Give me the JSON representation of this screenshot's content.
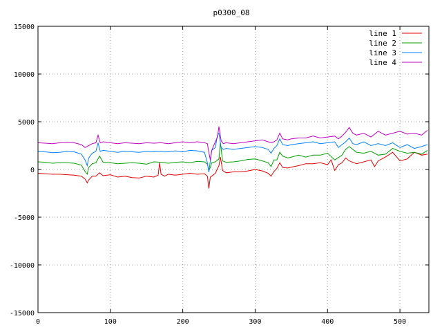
{
  "chart_data": {
    "type": "line",
    "title": "p0300_08",
    "xlabel": "",
    "ylabel": "",
    "xlim": [
      0,
      540
    ],
    "ylim": [
      -15000,
      15000
    ],
    "xticks": [
      0,
      100,
      200,
      300,
      400,
      500
    ],
    "yticks": [
      -15000,
      -10000,
      -5000,
      0,
      5000,
      10000,
      15000
    ],
    "grid": true,
    "legend_position": "top-right",
    "series": [
      {
        "name": "line 1",
        "color": "#e00000",
        "x": [
          0,
          10,
          20,
          30,
          40,
          50,
          60,
          65,
          68,
          70,
          75,
          80,
          85,
          90,
          100,
          110,
          120,
          130,
          140,
          150,
          160,
          166,
          168,
          170,
          175,
          180,
          190,
          200,
          210,
          220,
          230,
          234,
          236,
          238,
          240,
          245,
          250,
          252,
          255,
          260,
          270,
          280,
          290,
          300,
          310,
          318,
          322,
          326,
          330,
          334,
          338,
          345,
          350,
          360,
          370,
          380,
          390,
          400,
          405,
          410,
          415,
          420,
          425,
          430,
          440,
          450,
          460,
          465,
          470,
          480,
          490,
          500,
          510,
          520,
          530,
          538
        ],
        "y": [
          -400,
          -450,
          -500,
          -500,
          -550,
          -600,
          -700,
          -1000,
          -1400,
          -1100,
          -700,
          -700,
          -350,
          -650,
          -550,
          -800,
          -700,
          -850,
          -900,
          -700,
          -800,
          -600,
          700,
          -500,
          -700,
          -500,
          -600,
          -500,
          -400,
          -500,
          -450,
          -700,
          -2000,
          -800,
          -700,
          -400,
          400,
          1300,
          -100,
          -350,
          -250,
          -250,
          -150,
          0,
          -150,
          -400,
          -700,
          -200,
          100,
          700,
          200,
          150,
          250,
          400,
          600,
          600,
          700,
          500,
          1000,
          -100,
          500,
          700,
          1200,
          900,
          600,
          800,
          1000,
          300,
          900,
          1300,
          1800,
          900,
          1100,
          1800,
          1500,
          1600
        ]
      },
      {
        "name": "line 2",
        "color": "#00a000",
        "x": [
          0,
          10,
          20,
          30,
          40,
          50,
          60,
          65,
          68,
          70,
          75,
          80,
          85,
          90,
          100,
          110,
          120,
          130,
          140,
          150,
          160,
          170,
          180,
          190,
          200,
          210,
          220,
          230,
          234,
          236,
          238,
          240,
          245,
          250,
          252,
          255,
          260,
          270,
          280,
          290,
          300,
          310,
          318,
          322,
          326,
          330,
          334,
          338,
          345,
          350,
          360,
          370,
          380,
          390,
          400,
          410,
          420,
          425,
          430,
          440,
          450,
          460,
          470,
          480,
          490,
          500,
          510,
          520,
          530,
          538
        ],
        "y": [
          800,
          750,
          650,
          700,
          700,
          650,
          450,
          -200,
          -500,
          200,
          600,
          700,
          1400,
          750,
          700,
          600,
          650,
          700,
          650,
          550,
          800,
          750,
          650,
          750,
          800,
          700,
          850,
          800,
          550,
          -100,
          200,
          700,
          800,
          1100,
          2800,
          900,
          750,
          800,
          900,
          1050,
          1100,
          900,
          700,
          300,
          1000,
          1000,
          1800,
          1400,
          1200,
          1300,
          1500,
          1300,
          1500,
          1500,
          1700,
          1000,
          1500,
          2100,
          2400,
          1800,
          1700,
          1900,
          1500,
          1600,
          2200,
          1900,
          1700,
          1800,
          1600,
          2000
        ]
      },
      {
        "name": "line 3",
        "color": "#0080ff",
        "x": [
          0,
          10,
          20,
          30,
          40,
          50,
          60,
          65,
          68,
          70,
          75,
          80,
          83,
          86,
          90,
          100,
          110,
          120,
          130,
          140,
          150,
          160,
          170,
          180,
          190,
          200,
          210,
          220,
          230,
          234,
          236,
          238,
          240,
          245,
          248,
          250,
          253,
          256,
          260,
          270,
          280,
          290,
          300,
          310,
          318,
          322,
          326,
          330,
          334,
          338,
          345,
          350,
          360,
          370,
          380,
          390,
          400,
          410,
          415,
          420,
          425,
          430,
          435,
          440,
          450,
          460,
          470,
          480,
          490,
          500,
          510,
          520,
          530,
          538
        ],
        "y": [
          1900,
          1850,
          1750,
          1800,
          1900,
          1850,
          1600,
          1000,
          400,
          1200,
          1700,
          1900,
          2800,
          1900,
          2000,
          1900,
          1800,
          1900,
          1850,
          1800,
          1900,
          1850,
          1900,
          1850,
          1950,
          1850,
          2000,
          1950,
          1800,
          700,
          -300,
          900,
          2000,
          2300,
          3600,
          3800,
          2300,
          2100,
          2200,
          2100,
          2200,
          2300,
          2400,
          2300,
          2100,
          1700,
          2200,
          2500,
          3200,
          2600,
          2500,
          2600,
          2700,
          2800,
          2900,
          2700,
          2800,
          2900,
          2300,
          2600,
          2900,
          3300,
          2700,
          2600,
          2900,
          2500,
          2700,
          2500,
          2800,
          2300,
          2600,
          2200,
          2400,
          2600
        ]
      },
      {
        "name": "line 4",
        "color": "#c000c0",
        "x": [
          0,
          10,
          20,
          30,
          40,
          50,
          60,
          65,
          70,
          75,
          80,
          83,
          86,
          90,
          100,
          110,
          120,
          130,
          140,
          150,
          160,
          170,
          180,
          190,
          200,
          210,
          220,
          230,
          234,
          236,
          238,
          240,
          245,
          248,
          250,
          253,
          256,
          260,
          270,
          280,
          290,
          300,
          310,
          318,
          322,
          326,
          330,
          334,
          338,
          345,
          350,
          360,
          370,
          380,
          390,
          400,
          410,
          415,
          420,
          425,
          430,
          435,
          440,
          450,
          460,
          470,
          480,
          490,
          500,
          510,
          520,
          530,
          538
        ],
        "y": [
          2800,
          2750,
          2700,
          2800,
          2850,
          2800,
          2600,
          2300,
          2500,
          2700,
          2800,
          3600,
          2800,
          2900,
          2800,
          2700,
          2800,
          2750,
          2700,
          2800,
          2750,
          2800,
          2700,
          2800,
          2900,
          2800,
          2900,
          2800,
          2700,
          1800,
          1000,
          2000,
          2900,
          3400,
          4500,
          3000,
          2700,
          2800,
          2700,
          2800,
          2900,
          3000,
          3100,
          2900,
          2800,
          2900,
          3100,
          3800,
          3200,
          3100,
          3200,
          3300,
          3300,
          3500,
          3300,
          3400,
          3500,
          3200,
          3500,
          3900,
          4400,
          3800,
          3600,
          3800,
          3400,
          4000,
          3600,
          3800,
          4000,
          3700,
          3800,
          3600,
          4100
        ]
      }
    ]
  }
}
